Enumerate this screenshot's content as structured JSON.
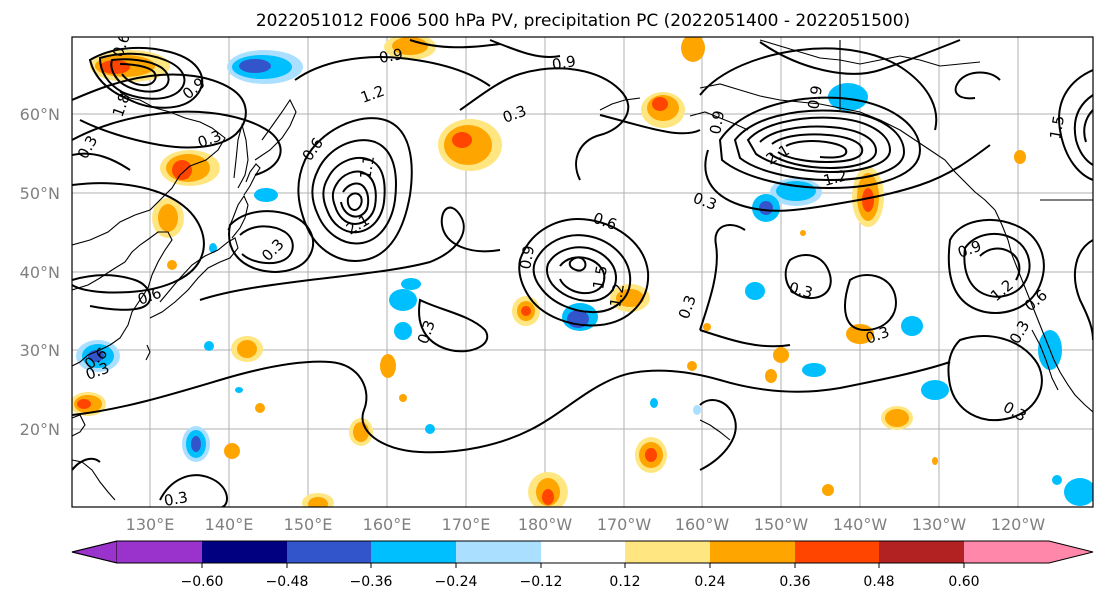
{
  "title": "2022051012 F006 500 hPa PV, precipitation PC (2022051400 - 2022051500)",
  "lat_labels": [
    "60°N",
    "50°N",
    "40°N",
    "30°N",
    "20°N"
  ],
  "lon_labels": [
    "130°E",
    "140°E",
    "150°E",
    "160°E",
    "170°E",
    "180°W",
    "170°W",
    "160°W",
    "150°W",
    "140°W",
    "130°W",
    "120°W"
  ],
  "colorbar": {
    "ticks": [
      "−0.60",
      "−0.48",
      "−0.36",
      "−0.24",
      "−0.12",
      "0.12",
      "0.24",
      "0.36",
      "0.48",
      "0.60"
    ],
    "colors": [
      "#9933cc",
      "#000080",
      "#3355cc",
      "#00bfff",
      "#aadfff",
      "#ffffff",
      "#ffe680",
      "#ffa500",
      "#ff4500",
      "#b22222",
      "#ff88aa"
    ]
  },
  "contour_labels": [
    "0.6",
    "0.3",
    "1.8",
    "0.3",
    "0.9",
    "1.2",
    "0.9",
    "0.6",
    "0.3",
    "0.3",
    "1.1",
    "2.1",
    "0.6",
    "0.9",
    "0.3",
    "0.6",
    "0.9",
    "1.5",
    "1.2",
    "0.3",
    "0.3",
    "0.9",
    "0.3",
    "2.1",
    "1.2",
    "0.3",
    "0.9",
    "0.3",
    "1.2",
    "0.6",
    "0.3",
    "0.3",
    "0.3",
    "0.6",
    "1.5",
    "0.9"
  ]
}
